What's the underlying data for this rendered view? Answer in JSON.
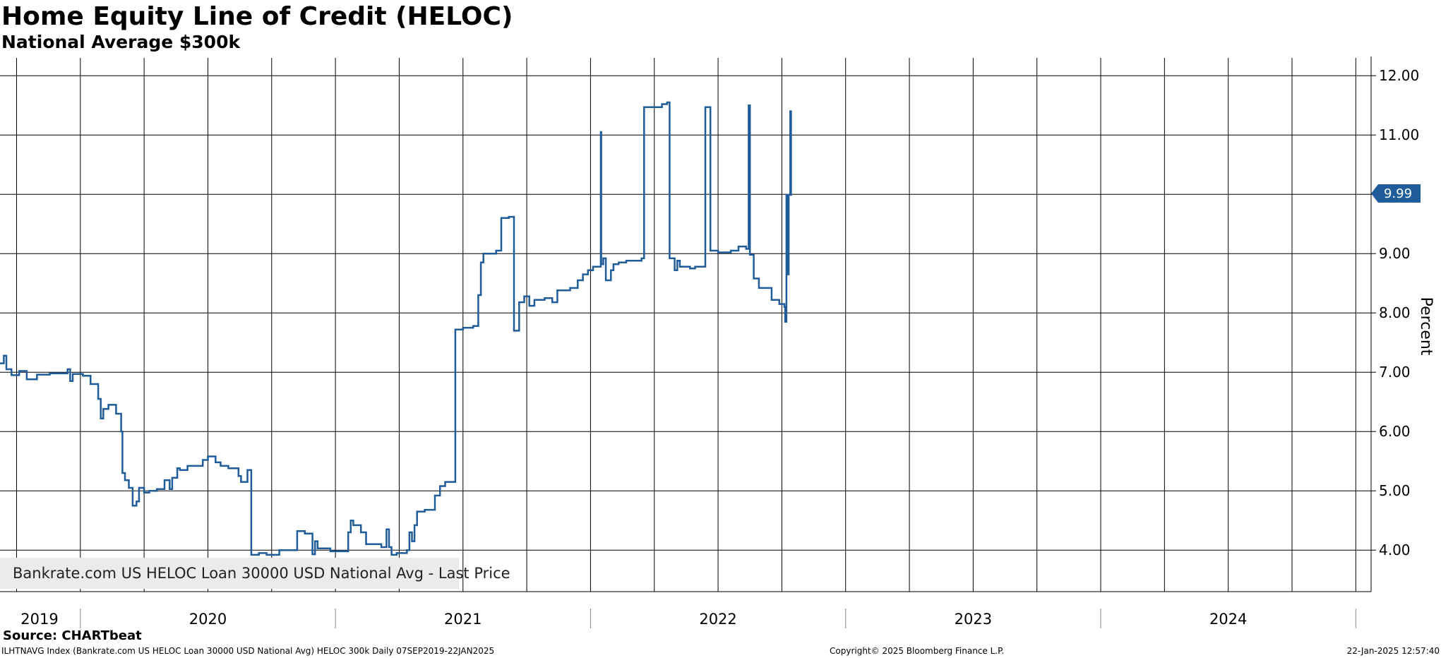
{
  "header": {
    "title": "Home Equity Line of Credit (HELOC)",
    "subtitle": "National Average $300k"
  },
  "legend": {
    "label": "Bankrate.com US HELOC Loan 30000 USD National Avg - Last Price",
    "color": "#1f5c99"
  },
  "footer": {
    "source": "Source: CHARTbeat",
    "ticker": "ILHTNAVG Index (Bankrate.com US HELOC Loan 30000 USD National Avg) HELOC 300k  Daily 07SEP2019-22JAN2025",
    "copyright": "Copyright© 2025 Bloomberg Finance L.P.",
    "timestamp": "22-Jan-2025 12:57:40"
  },
  "chart_data": {
    "type": "line",
    "title": "Home Equity Line of Credit (HELOC)",
    "subtitle": "National Average $300k",
    "xlabel": "",
    "ylabel": "Percent",
    "xlim": [
      2019.685,
      2025.06
    ],
    "ylim": [
      3.3,
      12.3
    ],
    "y_ticks": [
      "4.00",
      "5.00",
      "6.00",
      "7.00",
      "8.00",
      "9.00",
      "10.00",
      "11.00",
      "12.00"
    ],
    "x_year_labels": [
      {
        "label": "2019",
        "x": 2019.84
      },
      {
        "label": "2020",
        "x": 2020.5
      },
      {
        "label": "2021",
        "x": 2021.5
      },
      {
        "label": "2022",
        "x": 2022.5
      },
      {
        "label": "2023",
        "x": 2023.5
      },
      {
        "label": "2024",
        "x": 2024.5
      }
    ],
    "x_year_boundaries": [
      2020.0,
      2021.0,
      2022.0,
      2023.0,
      2024.0,
      2025.0
    ],
    "grid": true,
    "y_axis_side": "right",
    "last_value": {
      "label": "9.99",
      "value": 9.99,
      "color": "#1f5c99"
    },
    "series": [
      {
        "name": "Bankrate.com US HELOC Loan 30000 USD National Avg - Last Price",
        "color": "#1f5c99",
        "points": [
          [
            2019.685,
            7.15
          ],
          [
            2019.7,
            7.15
          ],
          [
            2019.7,
            7.28
          ],
          [
            2019.71,
            7.28
          ],
          [
            2019.71,
            7.05
          ],
          [
            2019.73,
            7.05
          ],
          [
            2019.73,
            6.95
          ],
          [
            2019.76,
            6.95
          ],
          [
            2019.76,
            7.02
          ],
          [
            2019.79,
            7.02
          ],
          [
            2019.79,
            6.88
          ],
          [
            2019.83,
            6.88
          ],
          [
            2019.83,
            6.96
          ],
          [
            2019.88,
            6.96
          ],
          [
            2019.88,
            6.98
          ],
          [
            2019.95,
            6.98
          ],
          [
            2019.95,
            7.05
          ],
          [
            2019.96,
            7.05
          ],
          [
            2019.96,
            6.85
          ],
          [
            2019.97,
            6.85
          ],
          [
            2019.97,
            6.97
          ],
          [
            2020.01,
            6.97
          ],
          [
            2020.01,
            6.94
          ],
          [
            2020.04,
            6.94
          ],
          [
            2020.04,
            6.8
          ],
          [
            2020.07,
            6.8
          ],
          [
            2020.07,
            6.55
          ],
          [
            2020.08,
            6.55
          ],
          [
            2020.08,
            6.22
          ],
          [
            2020.09,
            6.22
          ],
          [
            2020.09,
            6.38
          ],
          [
            2020.11,
            6.38
          ],
          [
            2020.11,
            6.45
          ],
          [
            2020.14,
            6.45
          ],
          [
            2020.14,
            6.3
          ],
          [
            2020.16,
            6.3
          ],
          [
            2020.16,
            6.0
          ],
          [
            2020.165,
            6.0
          ],
          [
            2020.165,
            5.3
          ],
          [
            2020.175,
            5.3
          ],
          [
            2020.175,
            5.18
          ],
          [
            2020.19,
            5.18
          ],
          [
            2020.19,
            5.05
          ],
          [
            2020.205,
            5.05
          ],
          [
            2020.205,
            4.75
          ],
          [
            2020.22,
            4.75
          ],
          [
            2020.22,
            4.82
          ],
          [
            2020.23,
            4.82
          ],
          [
            2020.23,
            5.05
          ],
          [
            2020.25,
            5.05
          ],
          [
            2020.25,
            4.97
          ],
          [
            2020.27,
            4.97
          ],
          [
            2020.27,
            5.0
          ],
          [
            2020.3,
            5.0
          ],
          [
            2020.3,
            5.03
          ],
          [
            2020.33,
            5.03
          ],
          [
            2020.33,
            5.18
          ],
          [
            2020.35,
            5.18
          ],
          [
            2020.35,
            5.03
          ],
          [
            2020.36,
            5.03
          ],
          [
            2020.36,
            5.22
          ],
          [
            2020.38,
            5.22
          ],
          [
            2020.38,
            5.38
          ],
          [
            2020.39,
            5.38
          ],
          [
            2020.39,
            5.35
          ],
          [
            2020.42,
            5.35
          ],
          [
            2020.42,
            5.42
          ],
          [
            2020.48,
            5.42
          ],
          [
            2020.48,
            5.52
          ],
          [
            2020.5,
            5.52
          ],
          [
            2020.5,
            5.58
          ],
          [
            2020.53,
            5.58
          ],
          [
            2020.53,
            5.48
          ],
          [
            2020.55,
            5.48
          ],
          [
            2020.55,
            5.42
          ],
          [
            2020.58,
            5.42
          ],
          [
            2020.58,
            5.38
          ],
          [
            2020.62,
            5.38
          ],
          [
            2020.62,
            5.25
          ],
          [
            2020.63,
            5.25
          ],
          [
            2020.63,
            5.15
          ],
          [
            2020.655,
            5.15
          ],
          [
            2020.655,
            5.35
          ],
          [
            2020.67,
            5.35
          ],
          [
            2020.67,
            3.92
          ],
          [
            2020.7,
            3.92
          ],
          [
            2020.7,
            3.95
          ],
          [
            2020.73,
            3.95
          ],
          [
            2020.73,
            3.92
          ],
          [
            2020.78,
            3.92
          ],
          [
            2020.78,
            4.0
          ],
          [
            2020.85,
            4.0
          ],
          [
            2020.85,
            4.32
          ],
          [
            2020.88,
            4.32
          ],
          [
            2020.88,
            4.28
          ],
          [
            2020.91,
            4.28
          ],
          [
            2020.91,
            3.93
          ],
          [
            2020.92,
            3.93
          ],
          [
            2020.92,
            4.15
          ],
          [
            2020.93,
            4.15
          ],
          [
            2020.93,
            4.03
          ],
          [
            2020.98,
            4.03
          ],
          [
            2020.98,
            3.98
          ],
          [
            2021.05,
            3.98
          ],
          [
            2021.05,
            4.3
          ],
          [
            2021.06,
            4.3
          ],
          [
            2021.06,
            4.5
          ],
          [
            2021.07,
            4.5
          ],
          [
            2021.07,
            4.42
          ],
          [
            2021.1,
            4.42
          ],
          [
            2021.1,
            4.3
          ],
          [
            2021.12,
            4.3
          ],
          [
            2021.12,
            4.1
          ],
          [
            2021.18,
            4.1
          ],
          [
            2021.18,
            4.05
          ],
          [
            2021.2,
            4.05
          ],
          [
            2021.2,
            4.35
          ],
          [
            2021.21,
            4.35
          ],
          [
            2021.21,
            4.05
          ],
          [
            2021.22,
            4.05
          ],
          [
            2021.22,
            3.92
          ],
          [
            2021.24,
            3.92
          ],
          [
            2021.24,
            3.95
          ],
          [
            2021.28,
            3.95
          ],
          [
            2021.28,
            4.0
          ],
          [
            2021.29,
            4.0
          ],
          [
            2021.29,
            4.3
          ],
          [
            2021.3,
            4.3
          ],
          [
            2021.3,
            4.15
          ],
          [
            2021.31,
            4.15
          ],
          [
            2021.31,
            4.42
          ],
          [
            2021.32,
            4.42
          ],
          [
            2021.32,
            4.65
          ],
          [
            2021.35,
            4.65
          ],
          [
            2021.35,
            4.68
          ],
          [
            2021.39,
            4.68
          ],
          [
            2021.39,
            4.92
          ],
          [
            2021.41,
            4.92
          ],
          [
            2021.41,
            5.08
          ],
          [
            2021.43,
            5.08
          ],
          [
            2021.43,
            5.15
          ],
          [
            2021.47,
            5.15
          ],
          [
            2021.47,
            7.72
          ],
          [
            2021.5,
            7.72
          ],
          [
            2021.5,
            7.75
          ],
          [
            2021.54,
            7.75
          ],
          [
            2021.54,
            7.78
          ],
          [
            2021.56,
            7.78
          ],
          [
            2021.56,
            8.3
          ],
          [
            2021.57,
            8.3
          ],
          [
            2021.57,
            8.85
          ],
          [
            2021.58,
            8.85
          ],
          [
            2021.58,
            9.0
          ],
          [
            2021.63,
            9.0
          ],
          [
            2021.63,
            9.05
          ],
          [
            2021.65,
            9.05
          ],
          [
            2021.65,
            9.6
          ],
          [
            2021.68,
            9.6
          ],
          [
            2021.68,
            9.62
          ],
          [
            2021.7,
            9.62
          ],
          [
            2021.7,
            7.7
          ],
          [
            2021.72,
            7.7
          ],
          [
            2021.72,
            8.18
          ],
          [
            2021.74,
            8.18
          ],
          [
            2021.74,
            8.28
          ],
          [
            2021.76,
            8.28
          ],
          [
            2021.76,
            8.12
          ],
          [
            2021.78,
            8.12
          ],
          [
            2021.78,
            8.22
          ],
          [
            2021.82,
            8.22
          ],
          [
            2021.82,
            8.25
          ],
          [
            2021.85,
            8.25
          ],
          [
            2021.85,
            8.18
          ],
          [
            2021.87,
            8.18
          ],
          [
            2021.87,
            8.38
          ],
          [
            2021.92,
            8.38
          ],
          [
            2021.92,
            8.42
          ],
          [
            2021.95,
            8.42
          ],
          [
            2021.95,
            8.55
          ],
          [
            2021.97,
            8.55
          ],
          [
            2021.97,
            8.65
          ],
          [
            2021.99,
            8.65
          ],
          [
            2021.99,
            8.72
          ],
          [
            2022.01,
            8.72
          ],
          [
            2022.01,
            8.78
          ],
          [
            2022.04,
            8.78
          ],
          [
            2022.04,
            11.05
          ],
          [
            2022.042,
            11.05
          ],
          [
            2022.042,
            8.82
          ],
          [
            2022.05,
            8.82
          ],
          [
            2022.05,
            8.92
          ],
          [
            2022.06,
            8.92
          ],
          [
            2022.06,
            8.55
          ],
          [
            2022.08,
            8.55
          ],
          [
            2022.08,
            8.72
          ],
          [
            2022.09,
            8.72
          ],
          [
            2022.09,
            8.82
          ],
          [
            2022.11,
            8.82
          ],
          [
            2022.11,
            8.85
          ],
          [
            2022.14,
            8.85
          ],
          [
            2022.14,
            8.88
          ],
          [
            2022.2,
            8.88
          ],
          [
            2022.2,
            8.92
          ],
          [
            2022.21,
            8.92
          ],
          [
            2022.21,
            11.47
          ],
          [
            2022.28,
            11.47
          ],
          [
            2022.28,
            11.52
          ],
          [
            2022.3,
            11.52
          ],
          [
            2022.3,
            11.55
          ],
          [
            2022.31,
            11.55
          ],
          [
            2022.31,
            8.92
          ],
          [
            2022.33,
            8.92
          ],
          [
            2022.33,
            8.72
          ],
          [
            2022.34,
            8.72
          ],
          [
            2022.34,
            8.88
          ],
          [
            2022.35,
            8.88
          ],
          [
            2022.35,
            8.78
          ],
          [
            2022.39,
            8.78
          ],
          [
            2022.39,
            8.75
          ],
          [
            2022.41,
            8.75
          ],
          [
            2022.41,
            8.78
          ],
          [
            2022.45,
            8.78
          ],
          [
            2022.45,
            11.47
          ],
          [
            2022.47,
            11.47
          ],
          [
            2022.47,
            9.05
          ],
          [
            2022.5,
            9.05
          ],
          [
            2022.5,
            9.02
          ],
          [
            2022.55,
            9.02
          ],
          [
            2022.55,
            9.05
          ],
          [
            2022.58,
            9.05
          ],
          [
            2022.58,
            9.12
          ],
          [
            2022.61,
            9.12
          ],
          [
            2022.61,
            9.08
          ],
          [
            2022.62,
            9.08
          ],
          [
            2022.62,
            11.5
          ],
          [
            2022.625,
            11.5
          ],
          [
            2022.625,
            8.98
          ],
          [
            2022.64,
            8.98
          ],
          [
            2022.64,
            8.58
          ],
          [
            2022.66,
            8.58
          ],
          [
            2022.66,
            8.42
          ],
          [
            2022.71,
            8.42
          ],
          [
            2022.71,
            8.22
          ],
          [
            2022.74,
            8.22
          ],
          [
            2022.74,
            8.15
          ],
          [
            2022.76,
            8.15
          ],
          [
            2022.76,
            8.1
          ],
          [
            2022.763,
            8.1
          ],
          [
            2022.763,
            7.85
          ],
          [
            2022.768,
            7.85
          ],
          [
            2022.768,
            9.99
          ],
          [
            2022.773,
            9.99
          ],
          [
            2022.773,
            8.65
          ],
          [
            2022.777,
            8.65
          ],
          [
            2022.777,
            9.99
          ],
          [
            2022.783,
            9.99
          ],
          [
            2022.783,
            11.4
          ],
          [
            2022.786,
            11.4
          ],
          [
            2022.786,
            9.99
          ],
          [
            2022.79,
            9.99
          ]
        ]
      }
    ]
  }
}
